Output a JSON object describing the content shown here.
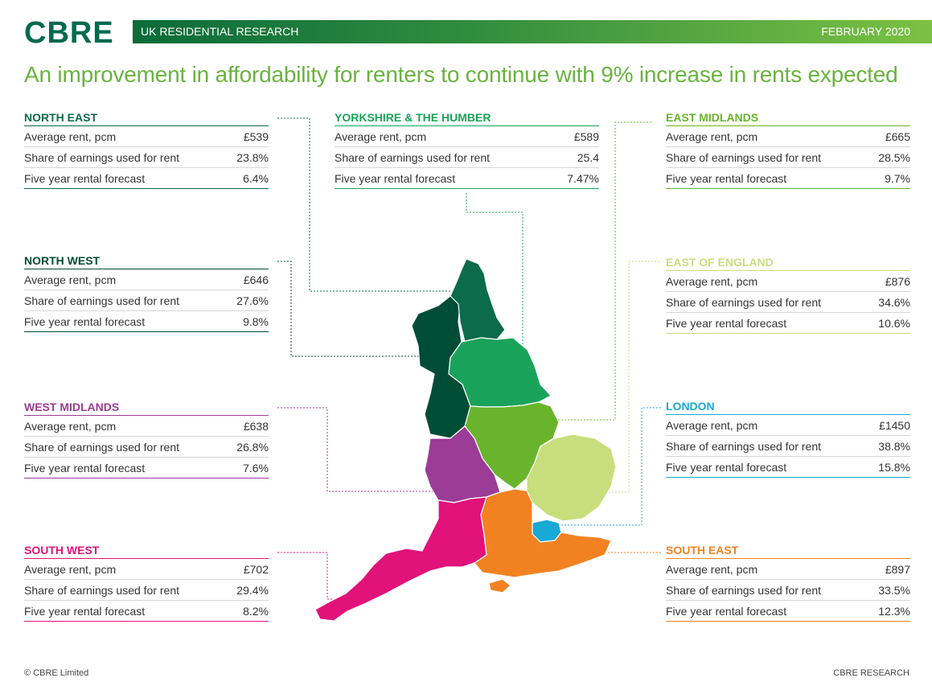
{
  "header": {
    "logo": "CBRE",
    "banner_left": "UK RESIDENTIAL RESEARCH",
    "banner_right": "FEBRUARY 2020",
    "headline": "An improvement in affordability for renters to continue with 9% increase in rents expected"
  },
  "labels": {
    "avg_rent": "Average rent, pcm",
    "share": "Share of earnings used for rent",
    "forecast": "Five year rental forecast"
  },
  "regions": {
    "north_east": {
      "name": "NORTH EAST",
      "color": "#0b6b4a",
      "avg_rent": "£539",
      "share": "23.8%",
      "forecast": "6.4%"
    },
    "yorkshire": {
      "name": "YORKSHIRE & THE HUMBER",
      "color": "#19a35a",
      "avg_rent": "£589",
      "share": "25.4",
      "forecast": "7.47%"
    },
    "east_midlands": {
      "name": "EAST MIDLANDS",
      "color": "#6ab42d",
      "avg_rent": "£665",
      "share": "28.5%",
      "forecast": "9.7%"
    },
    "north_west": {
      "name": "NORTH WEST",
      "color": "#004d35",
      "avg_rent": "£646",
      "share": "27.6%",
      "forecast": "9.8%"
    },
    "east_of_england": {
      "name": "EAST OF ENGLAND",
      "color": "#c8de7c",
      "avg_rent": "£876",
      "share": "34.6%",
      "forecast": "10.6%"
    },
    "west_midlands": {
      "name": "WEST MIDLANDS",
      "color": "#9b3c96",
      "avg_rent": "£638",
      "share": "26.8%",
      "forecast": "7.6%"
    },
    "london": {
      "name": "LONDON",
      "color": "#18a9d6",
      "avg_rent": "£1450",
      "share": "38.8%",
      "forecast": "15.8%"
    },
    "south_west": {
      "name": "SOUTH WEST",
      "color": "#e1127a",
      "avg_rent": "£702",
      "share": "29.4%",
      "forecast": "8.2%"
    },
    "south_east": {
      "name": "SOUTH EAST",
      "color": "#f28221",
      "avg_rent": "£897",
      "share": "33.5%",
      "forecast": "12.3%"
    }
  },
  "footer": {
    "left": "© CBRE Limited",
    "right": "CBRE RESEARCH"
  }
}
